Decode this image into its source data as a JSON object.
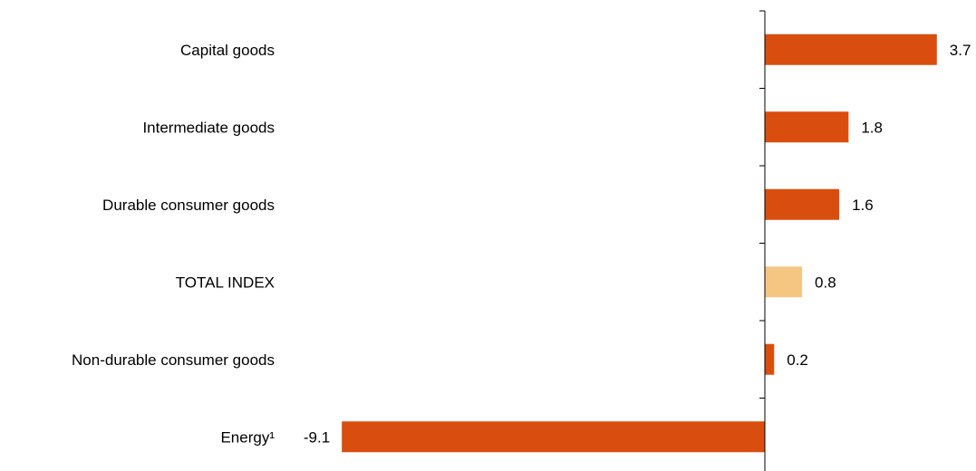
{
  "chart_data": {
    "type": "bar",
    "orientation": "horizontal",
    "title": "",
    "xlabel": "",
    "ylabel": "",
    "categories": [
      "Capital goods",
      "Intermediate goods",
      "Durable consumer goods",
      "TOTAL INDEX",
      "Non-durable consumer goods",
      "Energy¹"
    ],
    "values": [
      3.7,
      1.8,
      1.6,
      0.8,
      0.2,
      -9.1
    ],
    "value_labels": [
      "3.7",
      "1.8",
      "1.6",
      "0.8",
      "0.2",
      "-9.1"
    ],
    "bar_colors": [
      "#D94E0F",
      "#D94E0F",
      "#D94E0F",
      "#F5C682",
      "#D94E0F",
      "#D94E0F"
    ],
    "xlim": [
      -9.3,
      5
    ],
    "grid": false,
    "legend": "none"
  }
}
